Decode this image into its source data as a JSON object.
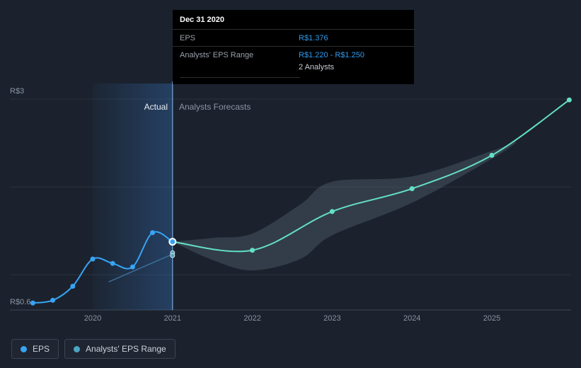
{
  "meta": {
    "title": "EPS actual and analysts forecasts chart"
  },
  "tooltip": {
    "date": "Dec 31 2020",
    "rows": [
      {
        "label": "EPS",
        "value": "R$1.376"
      },
      {
        "label": "Analysts' EPS Range",
        "value": "R$1.220 - R$1.250"
      }
    ],
    "analysts_note": "2 Analysts"
  },
  "annotations": {
    "actual": "Actual",
    "forecasts": "Analysts Forecasts"
  },
  "legend": [
    {
      "label": "EPS",
      "color": "#37a4f4"
    },
    {
      "label": "Analysts' EPS Range",
      "color": "#4da3c4"
    }
  ],
  "colors": {
    "background": "#1b222d",
    "grid": "#2a323f",
    "axis": "#3d4654",
    "axis_text": "#8a94a3",
    "highlight": "#3878c8",
    "hover_line": "#7aa7d9",
    "band": "#53656f",
    "range_dot": "#4da3c4",
    "eps_blue": "#37a4f4",
    "forecast_teal": "#64dfc3",
    "tooltip_value": "#2f9bef"
  },
  "chart_data": {
    "type": "line",
    "title": "EPS actual vs analysts forecasts",
    "currency": "R$",
    "x_axis": {
      "ticks": [
        {
          "x": 2020,
          "label": "2020"
        },
        {
          "x": 2021,
          "label": "2021"
        },
        {
          "x": 2022,
          "label": "2022"
        },
        {
          "x": 2023,
          "label": "2023"
        },
        {
          "x": 2024,
          "label": "2024"
        },
        {
          "x": 2025,
          "label": "2025"
        }
      ]
    },
    "y_axis": {
      "range": [
        0.6,
        3.0
      ],
      "gridlines": [
        3.0,
        2.0,
        1.0
      ],
      "labeled": [
        {
          "value": 3.0,
          "label": "R$3"
        },
        {
          "value": 0.6,
          "label": "R$0.6"
        }
      ]
    },
    "hover": {
      "x": 2021,
      "band_from": 2020,
      "date": "Dec 31 2020",
      "eps": 1.376,
      "range_low": 1.22,
      "range_high": 1.25
    },
    "series": [
      {
        "name": "EPS",
        "role": "actual",
        "color": "#37a4f4",
        "points": [
          [
            2019.25,
            0.68
          ],
          [
            2019.5,
            0.71
          ],
          [
            2019.75,
            0.87
          ],
          [
            2020.0,
            1.18
          ],
          [
            2020.25,
            1.13
          ],
          [
            2020.5,
            1.09
          ],
          [
            2020.75,
            1.48
          ],
          [
            2021.0,
            1.376
          ]
        ]
      },
      {
        "name": "Analysts' EPS Range (past estimate)",
        "role": "past-estimate",
        "color": "#3c6e96",
        "points": [
          [
            2020.2,
            0.92
          ],
          [
            2021.0,
            1.235
          ]
        ]
      },
      {
        "name": "EPS (Analysts Forecasts)",
        "role": "forecast",
        "color": "#64dfc3",
        "points": [
          [
            2021.0,
            1.376
          ],
          [
            2022.0,
            1.28
          ],
          [
            2023.0,
            1.72
          ],
          [
            2024.0,
            1.98
          ],
          [
            2025.0,
            2.36
          ],
          [
            2025.97,
            2.99
          ]
        ]
      }
    ],
    "forecast_band": {
      "name": "Analysts' EPS Range",
      "points": [
        {
          "x": 2021.0,
          "low": 1.376,
          "high": 1.376
        },
        {
          "x": 2021.5,
          "low": 1.17,
          "high": 1.42
        },
        {
          "x": 2022.0,
          "low": 1.05,
          "high": 1.47
        },
        {
          "x": 2022.6,
          "low": 1.18,
          "high": 1.8
        },
        {
          "x": 2023.0,
          "low": 1.45,
          "high": 2.06
        },
        {
          "x": 2024.0,
          "low": 1.82,
          "high": 2.12
        },
        {
          "x": 2025.0,
          "low": 2.32,
          "high": 2.41
        },
        {
          "x": 2025.3,
          "low": 2.5,
          "high": 2.52
        }
      ]
    },
    "range_endpoints": [
      {
        "x": 2021.0,
        "value": 1.25
      },
      {
        "x": 2021.0,
        "value": 1.22
      }
    ]
  }
}
